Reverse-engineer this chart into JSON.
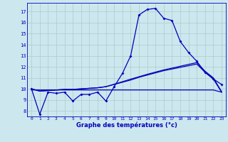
{
  "xlabel": "Graphe des températures (°c)",
  "background_color": "#cce8ee",
  "grid_color": "#aacccc",
  "line_color": "#0000bb",
  "x_ticks": [
    0,
    1,
    2,
    3,
    4,
    5,
    6,
    7,
    8,
    9,
    10,
    11,
    12,
    13,
    14,
    15,
    16,
    17,
    18,
    19,
    20,
    21,
    22,
    23
  ],
  "y_ticks": [
    8,
    9,
    10,
    11,
    12,
    13,
    14,
    15,
    16,
    17
  ],
  "ylim": [
    7.5,
    17.8
  ],
  "xlim": [
    -0.5,
    23.5
  ],
  "curve1": [
    10.0,
    7.7,
    9.7,
    9.6,
    9.7,
    8.9,
    9.5,
    9.5,
    9.7,
    8.9,
    10.2,
    11.4,
    13.0,
    16.7,
    17.2,
    17.3,
    16.4,
    16.2,
    14.3,
    13.3,
    12.5,
    11.5,
    10.9,
    10.4
  ],
  "line_flat": [
    9.9,
    9.9,
    9.9,
    9.9,
    9.9,
    9.9,
    9.9,
    9.9,
    9.9,
    9.9,
    9.9,
    9.9,
    9.9,
    9.9,
    9.9,
    9.9,
    9.9,
    9.9,
    9.9,
    9.9,
    9.9,
    9.9,
    9.9,
    9.7
  ],
  "line_rising1": [
    10.0,
    9.8,
    9.85,
    9.9,
    9.95,
    9.95,
    10.0,
    10.05,
    10.1,
    10.2,
    10.4,
    10.6,
    10.8,
    11.05,
    11.25,
    11.45,
    11.65,
    11.8,
    11.95,
    12.1,
    12.25,
    11.5,
    10.9,
    9.7
  ],
  "line_rising2": [
    10.0,
    9.8,
    9.85,
    9.9,
    9.95,
    9.95,
    10.0,
    10.05,
    10.1,
    10.2,
    10.42,
    10.65,
    10.88,
    11.1,
    11.32,
    11.52,
    11.72,
    11.88,
    12.05,
    12.22,
    12.38,
    11.6,
    11.0,
    9.75
  ]
}
